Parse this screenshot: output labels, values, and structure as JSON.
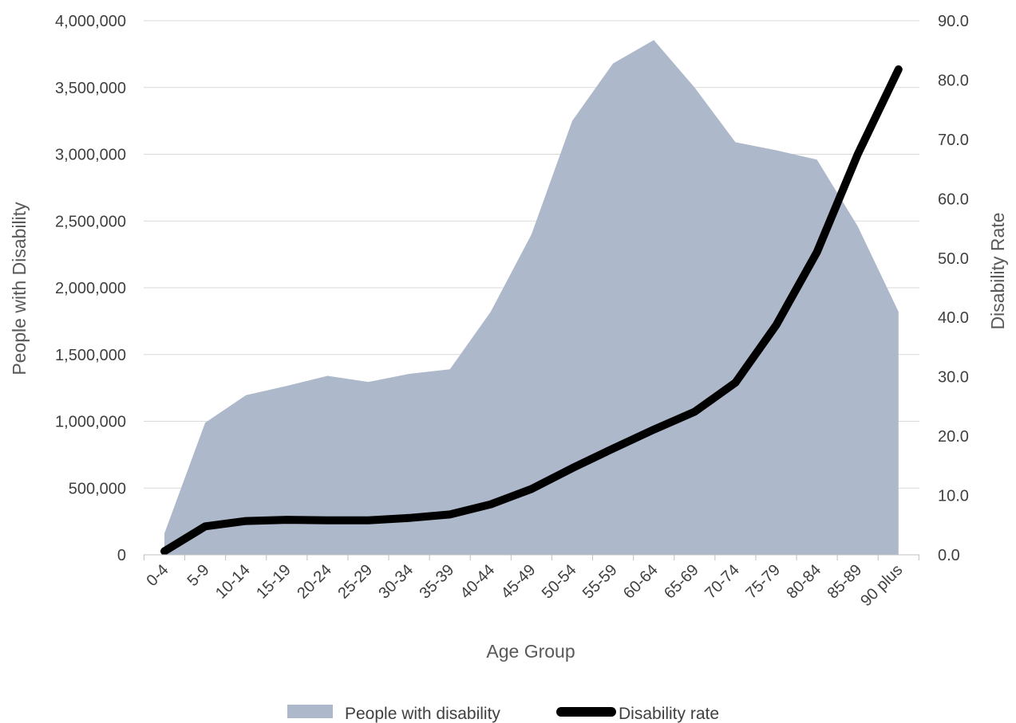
{
  "chart_data": {
    "type": "area",
    "categories": [
      "0-4",
      "5-9",
      "10-14",
      "15-19",
      "20-24",
      "25-29",
      "30-34",
      "35-39",
      "40-44",
      "45-49",
      "50-54",
      "55-59",
      "60-64",
      "65-69",
      "70-74",
      "75-79",
      "80-84",
      "85-89",
      "90 plus"
    ],
    "xlabel": "Age Group",
    "ylabel_left": "People with Disability",
    "ylabel_right": "Disability Rate",
    "ylim_left": [
      0,
      4000000
    ],
    "ylim_right": [
      0,
      90
    ],
    "left_ticks": [
      "0",
      "500,000",
      "1,000,000",
      "1,500,000",
      "2,000,000",
      "2,500,000",
      "3,000,000",
      "3,500,000",
      "4,000,000"
    ],
    "right_ticks": [
      "0.0",
      "10.0",
      "20.0",
      "30.0",
      "40.0",
      "50.0",
      "60.0",
      "70.0",
      "80.0",
      "90.0"
    ],
    "grid": true,
    "legend_position": "bottom",
    "series": [
      {
        "name": "People with disability",
        "type": "area",
        "axis": "left",
        "color": "#adb9ca",
        "values": [
          160000,
          990000,
          1195000,
          1265000,
          1340000,
          1295000,
          1355000,
          1390000,
          1820000,
          2400000,
          3250000,
          3680000,
          3855000,
          3500000,
          3090000,
          3030000,
          2960000,
          2460000,
          1820000
        ]
      },
      {
        "name": "Disability rate",
        "type": "line",
        "axis": "right",
        "color": "#000000",
        "values": [
          0.6,
          4.8,
          5.7,
          5.9,
          5.8,
          5.8,
          6.2,
          6.8,
          8.5,
          11.1,
          14.6,
          17.9,
          21.1,
          24.1,
          29.0,
          38.7,
          51.0,
          67.5,
          81.8
        ]
      }
    ]
  }
}
